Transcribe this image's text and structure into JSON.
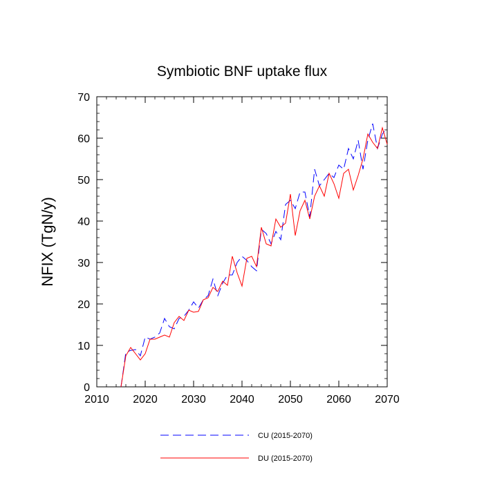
{
  "chart_data": {
    "type": "line",
    "title": "Symbiotic BNF uptake flux",
    "xlabel": "",
    "ylabel": "NFIX  (TgN/y)",
    "xlim": [
      2010,
      2070
    ],
    "ylim": [
      0,
      70
    ],
    "xticks": [
      2010,
      2020,
      2030,
      2040,
      2050,
      2060,
      2070
    ],
    "yticks": [
      0,
      10,
      20,
      30,
      40,
      50,
      60,
      70
    ],
    "x_minor_step": 2,
    "y_minor_step": 2,
    "grid": false,
    "legend_placement": "bottom",
    "series": [
      {
        "name": "CU (2015-2070)",
        "color": "#0000ff",
        "dash": "dashed",
        "x": [
          2015,
          2016,
          2017,
          2018,
          2019,
          2020,
          2021,
          2022,
          2023,
          2024,
          2025,
          2026,
          2027,
          2028,
          2029,
          2030,
          2031,
          2032,
          2033,
          2034,
          2035,
          2036,
          2037,
          2038,
          2039,
          2040,
          2041,
          2042,
          2043,
          2044,
          2045,
          2046,
          2047,
          2048,
          2049,
          2050,
          2051,
          2052,
          2053,
          2054,
          2055,
          2056,
          2057,
          2058,
          2059,
          2060,
          2061,
          2062,
          2063,
          2064,
          2065,
          2066,
          2067,
          2068,
          2069,
          2070
        ],
        "values": [
          0,
          8.3,
          8.8,
          9,
          7.5,
          12,
          11.5,
          12,
          13,
          16.5,
          14.5,
          14,
          16.5,
          17,
          18.5,
          20.5,
          19,
          21,
          22,
          26,
          22,
          25,
          27,
          27,
          30,
          31.5,
          30.5,
          29,
          28,
          38,
          37,
          34.5,
          37.5,
          35.5,
          44,
          45,
          43,
          47,
          47,
          41,
          52.5,
          48.5,
          50,
          51.5,
          50.5,
          53.5,
          52.5,
          57.5,
          55,
          59.5,
          52.5,
          59.5,
          63.5,
          57.5,
          61,
          62.5
        ]
      },
      {
        "name": "DU (2015-2070)",
        "color": "#ff0000",
        "dash": "solid",
        "x": [
          2015,
          2016,
          2017,
          2018,
          2019,
          2020,
          2021,
          2022,
          2023,
          2024,
          2025,
          2026,
          2027,
          2028,
          2029,
          2030,
          2031,
          2032,
          2033,
          2034,
          2035,
          2036,
          2037,
          2038,
          2039,
          2040,
          2041,
          2042,
          2043,
          2044,
          2045,
          2046,
          2047,
          2048,
          2049,
          2050,
          2051,
          2052,
          2053,
          2054,
          2055,
          2056,
          2057,
          2058,
          2059,
          2060,
          2061,
          2062,
          2063,
          2064,
          2065,
          2066,
          2067,
          2068,
          2069,
          2070
        ],
        "values": [
          0,
          7.5,
          9.5,
          8,
          6.5,
          8,
          11.5,
          11.5,
          12,
          12.5,
          12,
          15.5,
          17,
          16,
          18.5,
          18,
          18.2,
          21,
          21.5,
          24,
          23,
          25.5,
          24.5,
          31.5,
          27.5,
          24.3,
          31,
          31.5,
          29,
          38.5,
          34.5,
          34,
          40.5,
          38.5,
          39.5,
          46.5,
          36.5,
          42.5,
          45,
          40.5,
          46,
          48.5,
          46,
          51.5,
          49,
          45.5,
          51.5,
          52.5,
          47.5,
          51,
          55,
          61,
          59,
          57.5,
          62.5,
          58.5
        ]
      }
    ]
  }
}
